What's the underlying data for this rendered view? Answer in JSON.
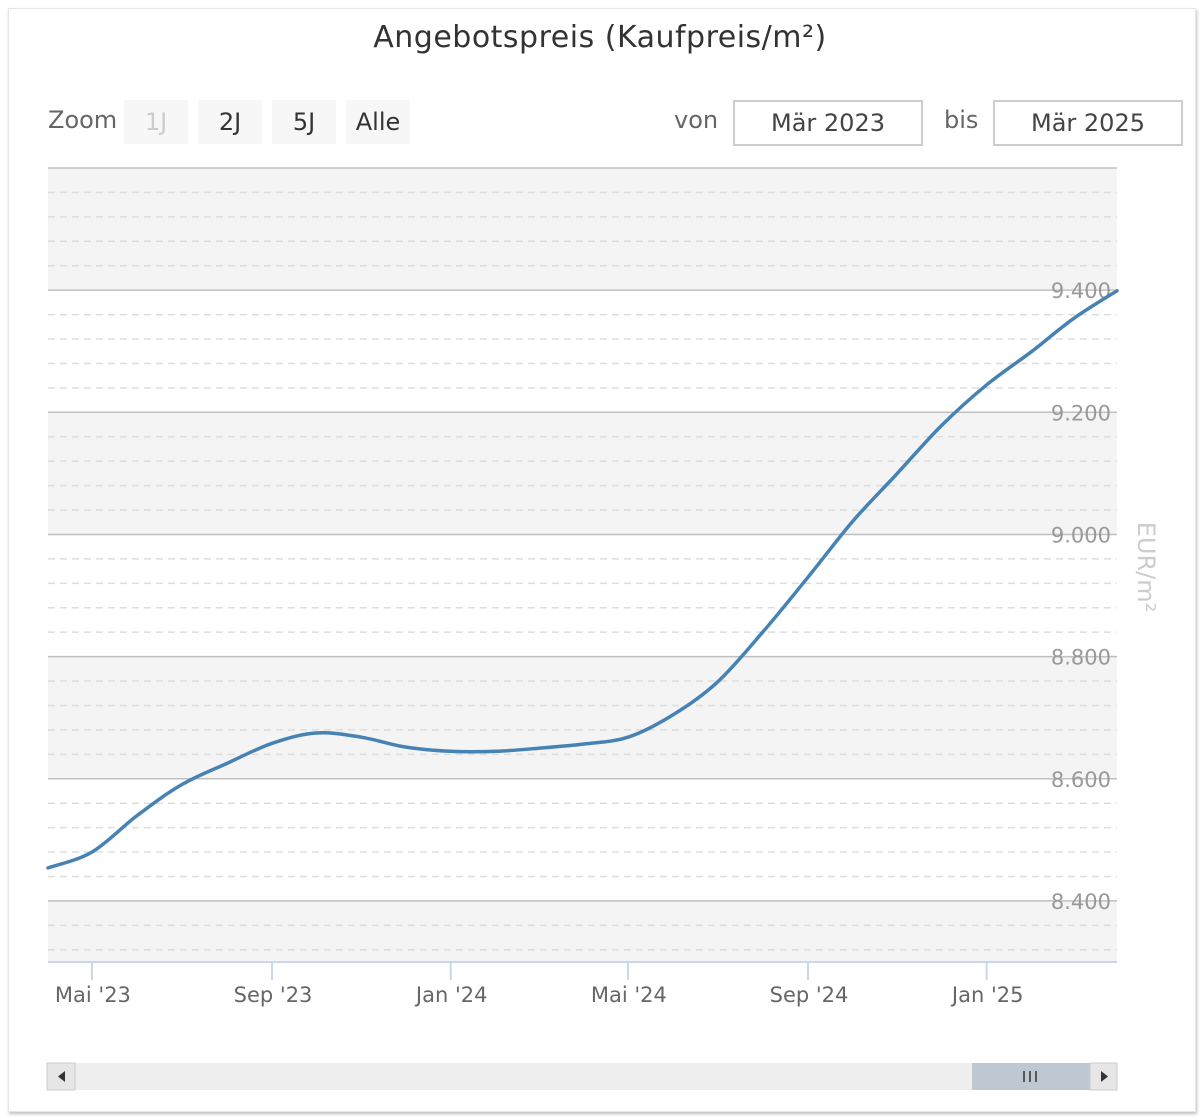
{
  "chart_title": "Angebotspreis (Kaufpreis/m²)",
  "toolbar": {
    "zoom_label": "Zoom",
    "zoom_buttons": [
      "1J",
      "2J",
      "5J",
      "Alle"
    ],
    "zoom_disabled": "1J",
    "from_label": "von",
    "from_value": "Mär 2023",
    "to_label": "bis",
    "to_value": "Mär 2025"
  },
  "colors": {
    "line": "#4682b4",
    "band": "#f4f4f4",
    "scrollbar_thumb": "#bec8d2"
  },
  "icons": {
    "nav_left": "left-triangle-icon",
    "nav_right": "right-triangle-icon",
    "thumb": "grip-lines-icon"
  },
  "chart_data": {
    "type": "line",
    "title": "Angebotspreis (Kaufpreis/m²)",
    "xlabel": "",
    "ylabel": "EUR/m²",
    "x_tick_labels": [
      "Mai '23",
      "Sep '23",
      "Jan '24",
      "Mai '24",
      "Sep '24",
      "Jan '25"
    ],
    "y_tick_labels": [
      "8.400",
      "8.600",
      "8.800",
      "9.000",
      "9.200",
      "9.400"
    ],
    "y_ticks": [
      8400,
      8600,
      8800,
      9000,
      9200,
      9400
    ],
    "ylim": [
      8300,
      9600
    ],
    "xlim": [
      "2023-04-01",
      "2025-03-31"
    ],
    "grid": true,
    "legend": "none",
    "series": [
      {
        "values": [
          {
            "x": "2023-04-01",
            "y": 8454
          },
          {
            "x": "2023-05-01",
            "y": 8480
          },
          {
            "x": "2023-06-01",
            "y": 8540
          },
          {
            "x": "2023-07-01",
            "y": 8590
          },
          {
            "x": "2023-08-01",
            "y": 8625
          },
          {
            "x": "2023-09-01",
            "y": 8658
          },
          {
            "x": "2023-10-01",
            "y": 8675
          },
          {
            "x": "2023-11-01",
            "y": 8668
          },
          {
            "x": "2023-12-01",
            "y": 8652
          },
          {
            "x": "2024-01-01",
            "y": 8645
          },
          {
            "x": "2024-02-01",
            "y": 8645
          },
          {
            "x": "2024-03-01",
            "y": 8650
          },
          {
            "x": "2024-04-01",
            "y": 8657
          },
          {
            "x": "2024-05-01",
            "y": 8668
          },
          {
            "x": "2024-06-01",
            "y": 8705
          },
          {
            "x": "2024-07-01",
            "y": 8758
          },
          {
            "x": "2024-08-01",
            "y": 8840
          },
          {
            "x": "2024-09-01",
            "y": 8930
          },
          {
            "x": "2024-10-01",
            "y": 9020
          },
          {
            "x": "2024-11-01",
            "y": 9100
          },
          {
            "x": "2024-12-01",
            "y": 9178
          },
          {
            "x": "2025-01-01",
            "y": 9245
          },
          {
            "x": "2025-02-01",
            "y": 9300
          },
          {
            "x": "2025-03-01",
            "y": 9353
          },
          {
            "x": "2025-03-31",
            "y": 9399
          }
        ]
      }
    ]
  }
}
